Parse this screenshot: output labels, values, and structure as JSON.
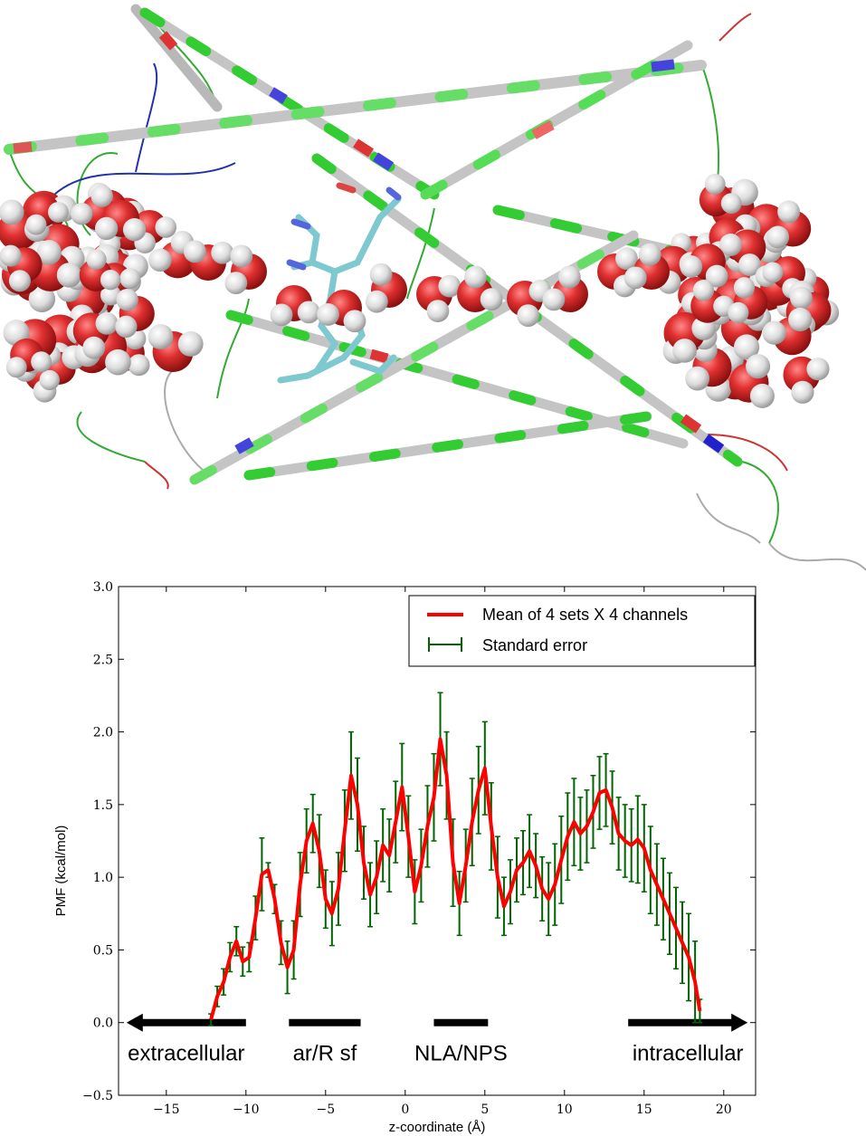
{
  "chart_data": {
    "type": "line",
    "xlabel": "z-coordinate (Å)",
    "ylabel": "PMF (kcal/mol)",
    "xlim": [
      -18,
      22
    ],
    "ylim": [
      -0.5,
      3.0
    ],
    "x_ticks": [
      -15,
      -10,
      -5,
      0,
      5,
      10,
      15,
      20
    ],
    "y_ticks": [
      -0.5,
      0.0,
      0.5,
      1.0,
      1.5,
      2.0,
      2.5,
      3.0
    ],
    "legend": {
      "placement": "top-right",
      "entries": [
        "Mean of 4 sets X 4 channels",
        "Standard error"
      ]
    },
    "series": [
      {
        "name": "Mean of 4 sets X 4 channels",
        "color": "#ff0000",
        "error_color": "#006400",
        "x": [
          -12.2,
          -11.8,
          -11.4,
          -11.0,
          -10.6,
          -10.2,
          -9.8,
          -9.4,
          -9.0,
          -8.6,
          -8.2,
          -7.8,
          -7.4,
          -7.0,
          -6.6,
          -6.2,
          -5.8,
          -5.4,
          -5.0,
          -4.6,
          -4.2,
          -3.8,
          -3.4,
          -3.0,
          -2.6,
          -2.2,
          -1.8,
          -1.4,
          -1.0,
          -0.6,
          -0.2,
          0.2,
          0.6,
          1.0,
          1.4,
          1.8,
          2.2,
          2.6,
          3.0,
          3.4,
          3.8,
          4.2,
          4.6,
          5.0,
          5.4,
          5.8,
          6.2,
          6.6,
          7.0,
          7.4,
          7.8,
          8.2,
          8.6,
          9.0,
          9.4,
          9.8,
          10.2,
          10.6,
          11.0,
          11.4,
          11.8,
          12.2,
          12.6,
          13.0,
          13.4,
          13.8,
          14.2,
          14.6,
          15.0,
          15.4,
          15.8,
          16.2,
          16.6,
          17.0,
          17.4,
          17.8,
          18.2,
          18.5
        ],
        "y": [
          0.02,
          0.18,
          0.28,
          0.45,
          0.56,
          0.42,
          0.45,
          0.72,
          1.02,
          1.05,
          0.85,
          0.55,
          0.38,
          0.5,
          0.95,
          1.25,
          1.37,
          1.18,
          0.85,
          0.75,
          0.92,
          1.32,
          1.7,
          1.5,
          1.1,
          0.88,
          1.0,
          1.22,
          1.15,
          1.38,
          1.62,
          1.28,
          0.9,
          1.08,
          1.35,
          1.55,
          1.95,
          1.7,
          1.1,
          0.82,
          1.08,
          1.38,
          1.6,
          1.75,
          1.35,
          1.0,
          0.8,
          0.9,
          1.05,
          1.1,
          1.18,
          1.08,
          0.92,
          0.85,
          0.95,
          1.12,
          1.28,
          1.38,
          1.3,
          1.35,
          1.45,
          1.58,
          1.6,
          1.48,
          1.3,
          1.25,
          1.22,
          1.26,
          1.2,
          1.05,
          0.95,
          0.85,
          0.75,
          0.65,
          0.55,
          0.45,
          0.28,
          0.08
        ],
        "yerr": [
          0.04,
          0.07,
          0.09,
          0.1,
          0.1,
          0.1,
          0.1,
          0.15,
          0.25,
          0.05,
          0.1,
          0.15,
          0.18,
          0.2,
          0.22,
          0.22,
          0.2,
          0.25,
          0.2,
          0.22,
          0.25,
          0.28,
          0.3,
          0.32,
          0.25,
          0.22,
          0.25,
          0.25,
          0.25,
          0.28,
          0.3,
          0.28,
          0.22,
          0.25,
          0.28,
          0.3,
          0.32,
          0.3,
          0.3,
          0.22,
          0.25,
          0.3,
          0.3,
          0.32,
          0.3,
          0.28,
          0.2,
          0.22,
          0.22,
          0.22,
          0.25,
          0.22,
          0.22,
          0.25,
          0.28,
          0.3,
          0.3,
          0.3,
          0.25,
          0.25,
          0.25,
          0.25,
          0.25,
          0.25,
          0.25,
          0.25,
          0.25,
          0.3,
          0.3,
          0.3,
          0.28,
          0.28,
          0.28,
          0.28,
          0.28,
          0.3,
          0.28,
          0.08
        ]
      }
    ],
    "regions": [
      {
        "label": "extracellular",
        "x": [
          -17.5,
          -10.0
        ],
        "arrow": "left"
      },
      {
        "label": "ar/R sf",
        "x": [
          -7.3,
          -2.8
        ],
        "arrow": "none"
      },
      {
        "label": "NLA/NPS",
        "x": [
          1.8,
          5.2
        ],
        "arrow": "none"
      },
      {
        "label": "intracellular",
        "x": [
          14.0,
          21.5
        ],
        "arrow": "right"
      }
    ]
  }
}
